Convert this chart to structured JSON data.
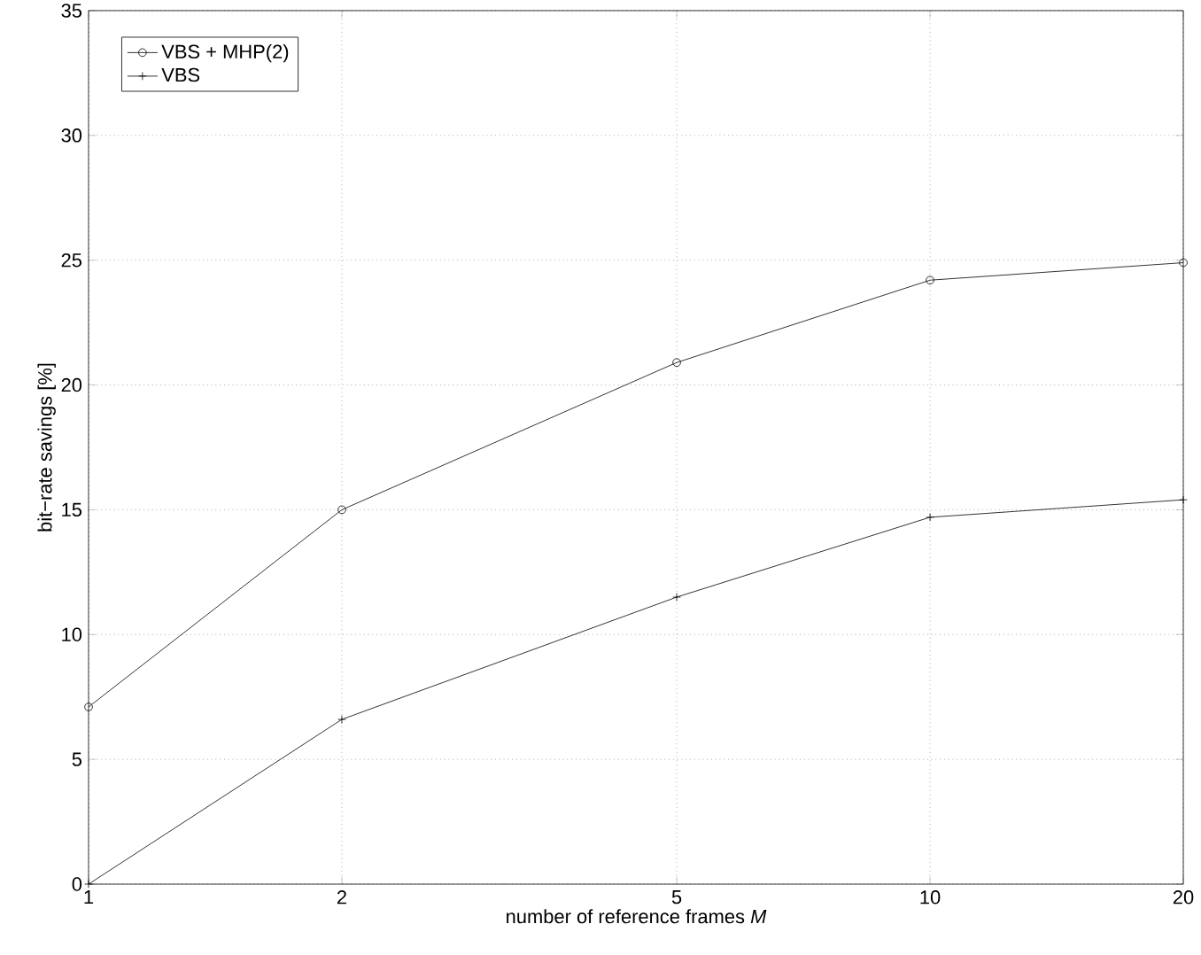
{
  "chart_data": {
    "type": "line",
    "xlabel": "number of reference frames  *M*",
    "ylabel": "bit−rate savings [%]",
    "x": [
      1,
      2,
      5,
      10,
      20
    ],
    "series": [
      {
        "name": "VBS + MHP(2)",
        "color": "#000000",
        "marker": "circle",
        "values": [
          7.1,
          15.0,
          20.9,
          24.2,
          24.9
        ]
      },
      {
        "name": "VBS",
        "color": "#000000",
        "marker": "cross",
        "values": [
          0,
          6.6,
          11.5,
          14.7,
          15.4
        ]
      }
    ],
    "xlim": [
      1,
      20
    ],
    "ylim": [
      0,
      35
    ],
    "xticks": [
      1,
      2,
      5,
      10,
      20
    ],
    "yticks": [
      0,
      5,
      10,
      15,
      20,
      25,
      30,
      35
    ],
    "log": "x",
    "grid": true,
    "legend": "top left",
    "line_style": "solid"
  }
}
